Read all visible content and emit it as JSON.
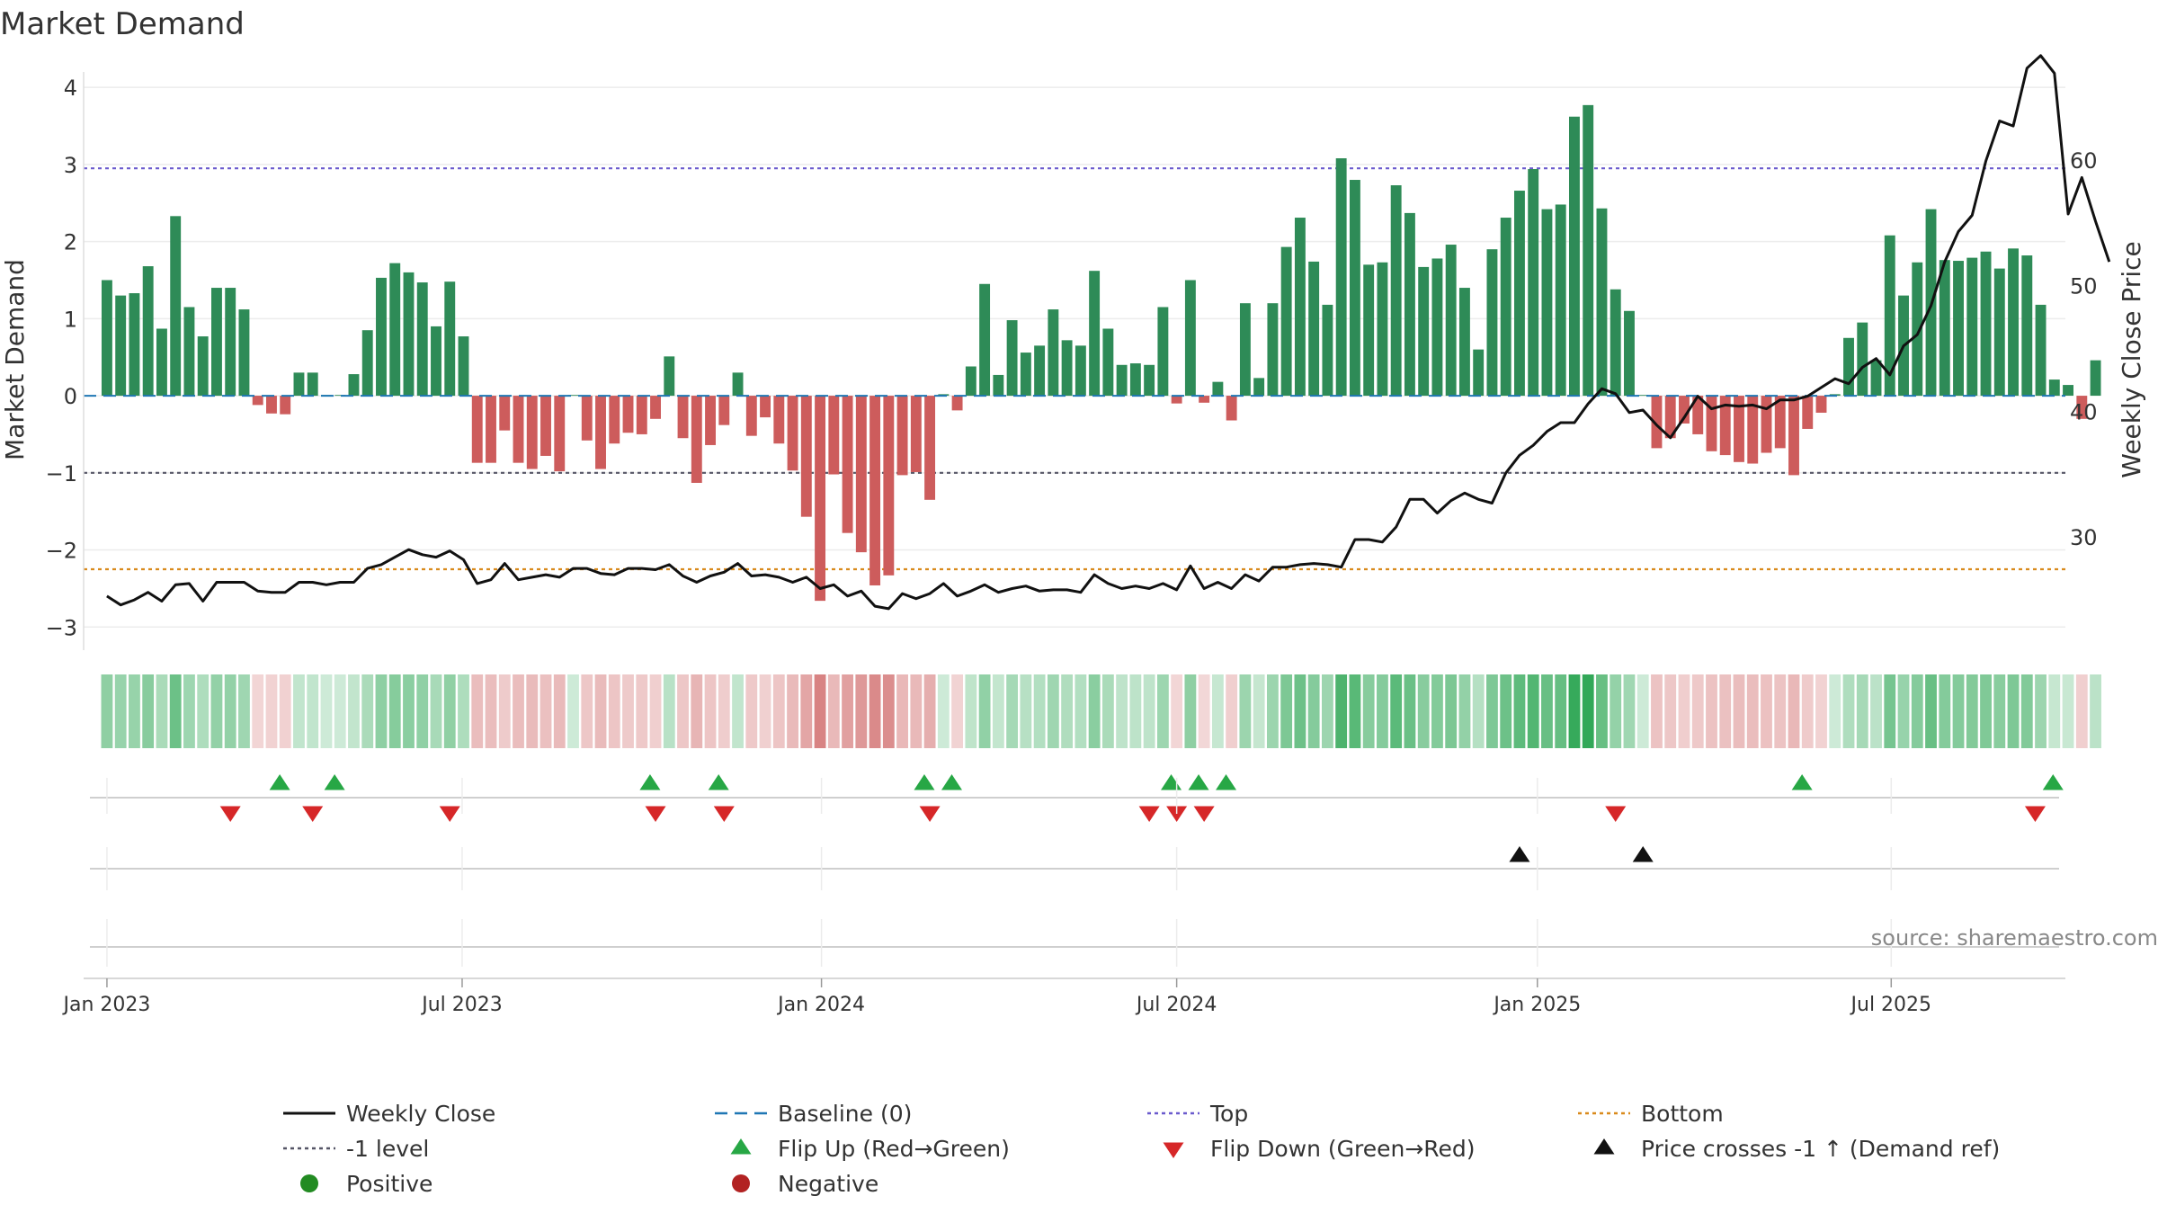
{
  "chart_data": {
    "type": "bar",
    "title": "Market Demand",
    "ylabel": "Market Demand",
    "y2label": "Weekly Close Price",
    "ylim": [
      -3.3,
      4.2
    ],
    "y2lim": [
      21,
      67
    ],
    "yticks": [
      -3,
      -2,
      -1,
      0,
      1,
      2,
      3,
      4
    ],
    "yticklabels": [
      "−3",
      "−2",
      "−1",
      "0",
      "1",
      "2",
      "3",
      "4"
    ],
    "y2ticks": [
      30,
      40,
      50,
      60
    ],
    "y2ticklabels": [
      "30",
      "40",
      "50",
      "60"
    ],
    "x_start_week": -1.7,
    "x_end_week": 142.8,
    "xticks": [
      {
        "week": 0,
        "label": "Jan 2023"
      },
      {
        "week": 25.9,
        "label": "Jul 2023"
      },
      {
        "week": 52.1,
        "label": "Jan 2024"
      },
      {
        "week": 78,
        "label": "Jul 2024"
      },
      {
        "week": 104.3,
        "label": "Jan 2025"
      },
      {
        "week": 130.1,
        "label": "Jul 2025"
      }
    ],
    "demand": [
      1.5,
      1.3,
      1.33,
      1.68,
      0.87,
      2.33,
      1.15,
      0.77,
      1.4,
      1.4,
      1.12,
      -0.12,
      -0.23,
      -0.24,
      0.3,
      0.3,
      0.01,
      0.01,
      0.28,
      0.85,
      1.53,
      1.72,
      1.6,
      1.47,
      0.9,
      1.48,
      0.77,
      -0.87,
      -0.87,
      -0.45,
      -0.87,
      -0.95,
      -0.78,
      -0.98,
      0.01,
      -0.58,
      -0.95,
      -0.62,
      -0.48,
      -0.5,
      -0.3,
      0.51,
      -0.55,
      -1.13,
      -0.64,
      -0.38,
      0.3,
      -0.52,
      -0.28,
      -0.62,
      -0.97,
      -1.57,
      -2.66,
      -1.02,
      -1.78,
      -2.03,
      -2.46,
      -2.33,
      -1.03,
      -0.99,
      -1.35,
      0.02,
      -0.19,
      0.38,
      1.45,
      0.27,
      0.98,
      0.56,
      0.65,
      1.12,
      0.72,
      0.65,
      1.62,
      0.87,
      0.4,
      0.42,
      0.4,
      1.15,
      -0.1,
      1.5,
      -0.09,
      0.18,
      -0.32,
      1.2,
      0.23,
      1.2,
      1.93,
      2.31,
      1.74,
      1.18,
      3.08,
      2.8,
      1.7,
      1.73,
      2.73,
      2.37,
      1.67,
      1.78,
      1.96,
      1.4,
      0.6,
      1.9,
      2.31,
      2.66,
      2.94,
      2.42,
      2.48,
      3.62,
      3.77,
      2.43,
      1.38,
      1.1,
      0.01,
      -0.68,
      -0.55,
      -0.36,
      -0.5,
      -0.72,
      -0.77,
      -0.86,
      -0.88,
      -0.74,
      -0.68,
      -1.03,
      -0.43,
      -0.22,
      0.02,
      0.75,
      0.95,
      0.46,
      2.08,
      1.3,
      1.73,
      2.42,
      1.76,
      1.75,
      1.79,
      1.87,
      1.65,
      1.91,
      1.82,
      1.18,
      0.21,
      0.14,
      -0.3,
      0.46
    ],
    "price": [
      25.3,
      24.6,
      25.0,
      25.6,
      24.9,
      26.2,
      26.3,
      24.9,
      26.4,
      26.4,
      26.4,
      25.7,
      25.6,
      25.6,
      26.4,
      26.4,
      26.2,
      26.4,
      26.4,
      27.5,
      27.8,
      28.4,
      29.0,
      28.6,
      28.4,
      28.9,
      28.2,
      26.3,
      26.6,
      27.9,
      26.6,
      26.8,
      27.0,
      26.8,
      27.5,
      27.5,
      27.1,
      27.0,
      27.5,
      27.5,
      27.4,
      27.8,
      26.9,
      26.4,
      26.9,
      27.2,
      27.9,
      26.9,
      27.0,
      26.8,
      26.4,
      26.8,
      25.9,
      26.2,
      25.3,
      25.7,
      24.5,
      24.3,
      25.5,
      25.1,
      25.5,
      26.3,
      25.3,
      25.7,
      26.2,
      25.6,
      25.9,
      26.1,
      25.7,
      25.8,
      25.8,
      25.6,
      27.0,
      26.3,
      25.9,
      26.1,
      25.9,
      26.3,
      25.8,
      27.7,
      25.9,
      26.4,
      25.9,
      27.0,
      26.5,
      27.6,
      27.6,
      27.8,
      27.9,
      27.8,
      27.6,
      29.8,
      29.8,
      29.6,
      30.8,
      33.0,
      33.0,
      31.9,
      32.9,
      33.5,
      33.0,
      32.7,
      35.1,
      36.5,
      37.3,
      38.4,
      39.1,
      39.1,
      40.6,
      41.8,
      41.4,
      39.9,
      40.1,
      38.9,
      37.9,
      39.5,
      41.2,
      40.2,
      40.5,
      40.4,
      40.5,
      40.2,
      40.9,
      40.9,
      41.2,
      41.9,
      42.6,
      42.2,
      43.5,
      44.2,
      42.9,
      45.2,
      46.1,
      48.4,
      51.9,
      54.3,
      55.6,
      59.9,
      63.1,
      62.7,
      67.3,
      68.3,
      66.9,
      55.7,
      58.6,
      55.1,
      51.9
    ],
    "flip_up_weeks": [
      12.6,
      16.6,
      39.6,
      44.6,
      59.6,
      61.6,
      77.6,
      79.6,
      81.6,
      123.6,
      141.9
    ],
    "flip_down_weeks": [
      9.0,
      15.0,
      25.0,
      40.0,
      45.0,
      60.0,
      76.0,
      78.0,
      80.0,
      110.0,
      140.6
    ],
    "cross_weeks": [
      103.0,
      112.0
    ],
    "reference_lines": {
      "top": 2.95,
      "bottom": -2.25,
      "minus_one": -1,
      "baseline": 0
    },
    "legend": [
      {
        "key": "weekly_close",
        "label": "Weekly Close"
      },
      {
        "key": "baseline",
        "label": "Baseline (0)"
      },
      {
        "key": "top",
        "label": "Top"
      },
      {
        "key": "bottom",
        "label": "Bottom"
      },
      {
        "key": "minus_one",
        "label": "-1 level"
      },
      {
        "key": "flip_up",
        "label": "Flip Up (Red→Green)"
      },
      {
        "key": "flip_down",
        "label": "Flip Down (Green→Red)"
      },
      {
        "key": "cross",
        "label": "Price crosses -1 ↑ (Demand ref)"
      },
      {
        "key": "positive",
        "label": "Positive"
      },
      {
        "key": "negative",
        "label": "Negative"
      }
    ],
    "source": "source: sharemaestro.com",
    "colors": {
      "positive_bar": "#2e8b57",
      "negative_bar": "#cd5c5c",
      "price_line": "#111111",
      "baseline": "#1f77b4",
      "top": "#6a5acd",
      "bottom": "#d98a1c",
      "minus_one": "#555566",
      "flip_up": "#27a745",
      "flip_down": "#d62728",
      "cross": "#111111",
      "positive_dot": "#228b22",
      "negative_dot": "#b22222",
      "heat_pos": "#21a14a",
      "heat_neg": "#c95454"
    }
  }
}
